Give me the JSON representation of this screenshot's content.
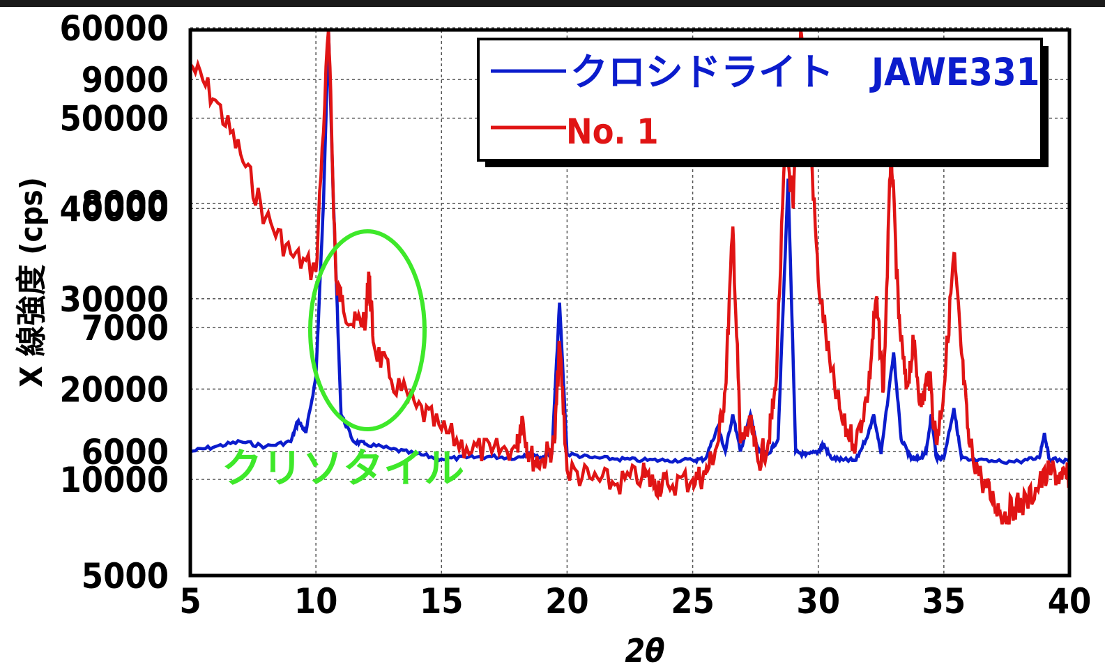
{
  "chart_data": {
    "type": "line",
    "xlabel": "2θ",
    "ylabel": "X 線強度 (cps)",
    "xlim": [
      5,
      40
    ],
    "x_ticks": [
      "5",
      "10",
      "15",
      "20",
      "25",
      "30",
      "35",
      "40"
    ],
    "y_axes": [
      {
        "name": "left-outer",
        "ticks": [
          "5000",
          "6000",
          "7000",
          "8000",
          "9000"
        ],
        "ylim": [
          5000,
          9400
        ]
      },
      {
        "name": "left-inner",
        "ticks": [
          "10000",
          "20000",
          "30000",
          "40000",
          "50000",
          "60000"
        ],
        "ylim": [
          10000,
          60000
        ]
      }
    ],
    "grid": true,
    "legend_position": "top-right",
    "series": [
      {
        "name": "クロシドライト　JAWE331",
        "color": "#0b1ccc",
        "points": [
          [
            5,
            6000
          ],
          [
            6,
            6040
          ],
          [
            7,
            6080
          ],
          [
            8,
            6040
          ],
          [
            9,
            6080
          ],
          [
            9.3,
            6250
          ],
          [
            9.6,
            6150
          ],
          [
            10,
            6600
          ],
          [
            10.3,
            8000
          ],
          [
            10.5,
            9400
          ],
          [
            10.7,
            8000
          ],
          [
            11,
            6300
          ],
          [
            11.5,
            6080
          ],
          [
            12,
            6060
          ],
          [
            13,
            6020
          ],
          [
            14,
            5980
          ],
          [
            15,
            5940
          ],
          [
            16,
            5950
          ],
          [
            17,
            5960
          ],
          [
            18,
            5950
          ],
          [
            18.5,
            5990
          ],
          [
            19,
            5950
          ],
          [
            19.4,
            6000
          ],
          [
            19.7,
            7200
          ],
          [
            20,
            5980
          ],
          [
            21,
            5950
          ],
          [
            22,
            5940
          ],
          [
            23,
            5930
          ],
          [
            24,
            5930
          ],
          [
            25,
            5930
          ],
          [
            25.5,
            5940
          ],
          [
            26,
            6200
          ],
          [
            26.3,
            6000
          ],
          [
            26.6,
            6300
          ],
          [
            26.9,
            6000
          ],
          [
            27.3,
            6300
          ],
          [
            27.6,
            6000
          ],
          [
            28,
            5980
          ],
          [
            28.4,
            6100
          ],
          [
            28.8,
            8200
          ],
          [
            29.1,
            6000
          ],
          [
            29.5,
            5970
          ],
          [
            30,
            6000
          ],
          [
            30.2,
            6060
          ],
          [
            30.5,
            5950
          ],
          [
            31,
            5930
          ],
          [
            31.5,
            5930
          ],
          [
            32,
            6150
          ],
          [
            32.2,
            6300
          ],
          [
            32.5,
            5980
          ],
          [
            33,
            6800
          ],
          [
            33.3,
            6100
          ],
          [
            33.7,
            5940
          ],
          [
            34,
            5940
          ],
          [
            34.3,
            6000
          ],
          [
            34.5,
            6300
          ],
          [
            34.7,
            5950
          ],
          [
            35,
            5950
          ],
          [
            35.4,
            6350
          ],
          [
            35.7,
            5950
          ],
          [
            36,
            5930
          ],
          [
            37,
            5920
          ],
          [
            38,
            5920
          ],
          [
            38.8,
            5950
          ],
          [
            39,
            6150
          ],
          [
            39.2,
            5940
          ],
          [
            40,
            5920
          ]
        ]
      },
      {
        "name": "No. 1",
        "color": "#e01414",
        "points": [
          [
            5,
            56000
          ],
          [
            6,
            52000
          ],
          [
            7,
            46000
          ],
          [
            8,
            39000
          ],
          [
            9,
            35000
          ],
          [
            10,
            33000
          ],
          [
            10.5,
            60000
          ],
          [
            10.8,
            32000
          ],
          [
            11,
            30000
          ],
          [
            11.5,
            27000
          ],
          [
            12,
            28000
          ],
          [
            12.1,
            33000
          ],
          [
            12.3,
            25000
          ],
          [
            13,
            21000
          ],
          [
            14,
            18000
          ],
          [
            15,
            15500
          ],
          [
            16,
            13500
          ],
          [
            17,
            13000
          ],
          [
            18,
            13500
          ],
          [
            18.2,
            17000
          ],
          [
            18.5,
            12500
          ],
          [
            19,
            12000
          ],
          [
            19.5,
            14000
          ],
          [
            19.7,
            25000
          ],
          [
            20,
            11000
          ],
          [
            21,
            10000
          ],
          [
            22,
            9500
          ],
          [
            23,
            10500
          ],
          [
            23.5,
            9500
          ],
          [
            24,
            9500
          ],
          [
            25,
            10000
          ],
          [
            25.5,
            10500
          ],
          [
            26,
            14000
          ],
          [
            26.3,
            20000
          ],
          [
            26.6,
            38000
          ],
          [
            26.9,
            14000
          ],
          [
            27.3,
            16000
          ],
          [
            27.6,
            12000
          ],
          [
            28,
            14000
          ],
          [
            28.3,
            20000
          ],
          [
            28.7,
            48000
          ],
          [
            29,
            40000
          ],
          [
            29.3,
            60000
          ],
          [
            29.6,
            52000
          ],
          [
            30,
            32000
          ],
          [
            30.5,
            22000
          ],
          [
            31,
            16000
          ],
          [
            31.5,
            14000
          ],
          [
            32,
            20000
          ],
          [
            32.3,
            30000
          ],
          [
            32.6,
            20000
          ],
          [
            32.9,
            47000
          ],
          [
            33.2,
            28000
          ],
          [
            33.5,
            20000
          ],
          [
            33.8,
            25000
          ],
          [
            34.1,
            18000
          ],
          [
            34.4,
            22000
          ],
          [
            34.7,
            14000
          ],
          [
            35,
            20000
          ],
          [
            35.4,
            35000
          ],
          [
            35.7,
            24000
          ],
          [
            36,
            14000
          ],
          [
            36.5,
            10000
          ],
          [
            37,
            7500
          ],
          [
            37.4,
            6000
          ],
          [
            37.8,
            7000
          ],
          [
            38.3,
            7500
          ],
          [
            38.8,
            9500
          ],
          [
            39.3,
            11000
          ],
          [
            39.7,
            10000
          ],
          [
            40,
            10500
          ]
        ]
      }
    ],
    "annotation": {
      "label": "クリソタイル",
      "color": "#3ee82a"
    }
  }
}
